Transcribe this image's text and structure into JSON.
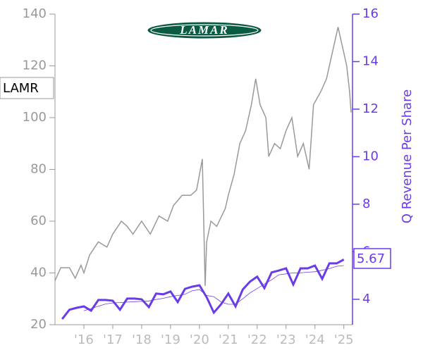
{
  "chart_data": {
    "type": "line",
    "logo": "LAMAR",
    "y2label": "Q Revenue Per Share",
    "xlim": [
      2015.0,
      2025.3
    ],
    "xticks": [
      {
        "value": 2016,
        "label": "'16"
      },
      {
        "value": 2017,
        "label": "'17"
      },
      {
        "value": 2018,
        "label": "'18"
      },
      {
        "value": 2019,
        "label": "'19"
      },
      {
        "value": 2020,
        "label": "'20"
      },
      {
        "value": 2021,
        "label": "'21"
      },
      {
        "value": 2022,
        "label": "'22"
      },
      {
        "value": 2023,
        "label": "'23"
      },
      {
        "value": 2024,
        "label": "'24"
      },
      {
        "value": 2025,
        "label": "'25"
      }
    ],
    "ylim": [
      20,
      140
    ],
    "yticks": [
      20,
      40,
      60,
      80,
      100,
      120,
      140
    ],
    "y2lim": [
      2.93,
      16
    ],
    "y2ticks": [
      4,
      6,
      8,
      10,
      12,
      14,
      16
    ],
    "price": {
      "name": "LAMR",
      "color": "#999999",
      "x": [
        2015.0,
        2015.2,
        2015.5,
        2015.7,
        2015.9,
        2016.0,
        2016.2,
        2016.5,
        2016.8,
        2017.0,
        2017.3,
        2017.5,
        2017.7,
        2018.0,
        2018.3,
        2018.6,
        2018.9,
        2019.1,
        2019.4,
        2019.7,
        2019.9,
        2020.0,
        2020.1,
        2020.2,
        2020.25,
        2020.4,
        2020.6,
        2020.9,
        2021.0,
        2021.2,
        2021.4,
        2021.6,
        2021.8,
        2021.95,
        2022.1,
        2022.3,
        2022.4,
        2022.6,
        2022.8,
        2023.0,
        2023.2,
        2023.4,
        2023.6,
        2023.8,
        2023.95,
        2024.2,
        2024.4,
        2024.6,
        2024.8,
        2024.9,
        2025.0,
        2025.1,
        2025.2,
        2025.25
      ],
      "values": [
        37,
        42,
        42,
        38,
        43,
        40,
        47,
        52,
        50,
        55,
        60,
        58,
        55,
        60,
        55,
        62,
        60,
        66,
        70,
        70,
        72,
        78,
        84,
        35,
        52,
        60,
        58,
        65,
        70,
        78,
        90,
        95,
        105,
        115,
        105,
        100,
        85,
        90,
        88,
        95,
        100,
        85,
        90,
        80,
        105,
        110,
        115,
        125,
        135,
        130,
        125,
        120,
        110,
        102
      ]
    },
    "x": [
      2015.25,
      2015.5,
      2015.75,
      2016.0,
      2016.25,
      2016.5,
      2016.75,
      2017.0,
      2017.25,
      2017.5,
      2017.75,
      2018.0,
      2018.25,
      2018.5,
      2018.75,
      2019.0,
      2019.25,
      2019.5,
      2019.75,
      2020.0,
      2020.25,
      2020.5,
      2020.75,
      2021.0,
      2021.25,
      2021.5,
      2021.75,
      2022.0,
      2022.25,
      2022.5,
      2022.75,
      2023.0,
      2023.25,
      2023.5,
      2023.75,
      2024.0,
      2024.25,
      2024.5,
      2024.75,
      2025.0
    ],
    "series": [
      {
        "name": "Q Revenue Per Share",
        "axis": "y2",
        "color": "#6a3ce8",
        "values": [
          3.17,
          3.56,
          3.64,
          3.7,
          3.52,
          3.97,
          3.97,
          3.94,
          3.56,
          4.03,
          4.03,
          4.0,
          3.67,
          4.24,
          4.21,
          4.33,
          3.88,
          4.44,
          4.53,
          4.59,
          4.09,
          3.44,
          3.79,
          4.24,
          3.7,
          4.41,
          4.74,
          4.95,
          4.47,
          5.13,
          5.21,
          5.3,
          4.62,
          5.3,
          5.3,
          5.42,
          4.86,
          5.51,
          5.51,
          5.67
        ]
      },
      {
        "axis": "y2",
        "color": "#6a3ce8",
        "values": [
          null,
          null,
          null,
          3.52,
          3.61,
          3.71,
          3.8,
          3.85,
          3.86,
          3.88,
          3.9,
          3.91,
          3.93,
          3.99,
          4.04,
          4.11,
          4.16,
          4.21,
          4.36,
          4.41,
          4.16,
          4.11,
          3.89,
          3.79,
          3.79,
          4.02,
          4.27,
          4.45,
          4.64,
          4.82,
          5.03,
          5.07,
          5.11,
          5.11,
          5.14,
          5.16,
          5.22,
          5.29,
          5.39,
          5.42
        ]
      }
    ]
  }
}
